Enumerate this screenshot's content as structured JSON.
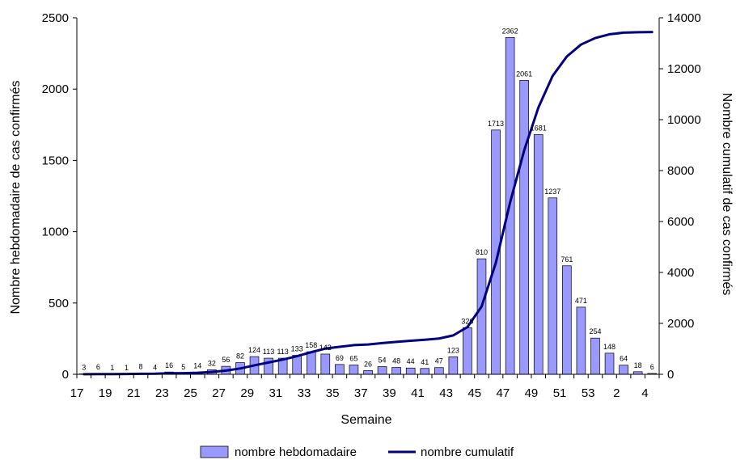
{
  "chart_data": {
    "type": "bar",
    "xlabel": "Semaine",
    "ylabel_left": "Nombre hebdomadaire de cas confirmés",
    "ylabel_right": "Nombre cumulatif de cas confirmés",
    "ylim_left": [
      0,
      2500
    ],
    "ylim_right": [
      0,
      14000
    ],
    "yticks_left": [
      "0",
      "500",
      "1000",
      "1500",
      "2000",
      "2500"
    ],
    "yticks_right": [
      "0",
      "2000",
      "4000",
      "6000",
      "8000",
      "10000",
      "12000",
      "14000"
    ],
    "categories": [
      "17",
      "18",
      "19",
      "20",
      "21",
      "22",
      "23",
      "24",
      "25",
      "26",
      "27",
      "28",
      "29",
      "30",
      "31",
      "32",
      "33",
      "34",
      "35",
      "36",
      "37",
      "38",
      "39",
      "40",
      "41",
      "42",
      "43",
      "44",
      "45",
      "46",
      "47",
      "48",
      "49",
      "50",
      "51",
      "52",
      "53",
      "1",
      "2",
      "3",
      "4"
    ],
    "x_tick_labels": [
      "17",
      "19",
      "21",
      "23",
      "25",
      "27",
      "29",
      "31",
      "33",
      "35",
      "37",
      "39",
      "41",
      "43",
      "45",
      "47",
      "49",
      "51",
      "53",
      "2",
      "4"
    ],
    "series": [
      {
        "name": "nombre hebdomadaire",
        "type": "bar",
        "axis": "left",
        "color": "#9999ff",
        "values": [
          3,
          6,
          1,
          1,
          8,
          4,
          16,
          5,
          14,
          32,
          56,
          82,
          124,
          113,
          113,
          133,
          158,
          142,
          69,
          65,
          26,
          54,
          48,
          44,
          41,
          47,
          123,
          326,
          810,
          1713,
          2362,
          2061,
          1681,
          1237,
          761,
          471,
          254,
          148,
          64,
          18,
          6
        ],
        "labels": [
          "3",
          "6",
          "1",
          "1",
          "8",
          "4",
          "16",
          "5",
          "14",
          "32",
          "56",
          "82",
          "124",
          "113",
          "113",
          "133",
          "158",
          "142",
          "69",
          "65",
          "26",
          "54",
          "48",
          "44",
          "41",
          "47",
          "123",
          "326",
          "810",
          "1713",
          "2362",
          "2061",
          "1681",
          "1237",
          "761",
          "471",
          "254",
          "148",
          "64",
          "18",
          "6"
        ]
      },
      {
        "name": "nombre cumulatif",
        "type": "line",
        "axis": "right",
        "color": "#000080",
        "values": [
          3,
          9,
          10,
          11,
          19,
          23,
          39,
          44,
          58,
          90,
          146,
          228,
          352,
          465,
          578,
          711,
          869,
          1011,
          1080,
          1145,
          1171,
          1225,
          1273,
          1317,
          1358,
          1405,
          1528,
          1854,
          2664,
          4377,
          6739,
          8800,
          10481,
          11718,
          12479,
          12950,
          13204,
          13352,
          13416,
          13434,
          13440
        ]
      }
    ],
    "legend_position": "bottom",
    "grid": false
  }
}
